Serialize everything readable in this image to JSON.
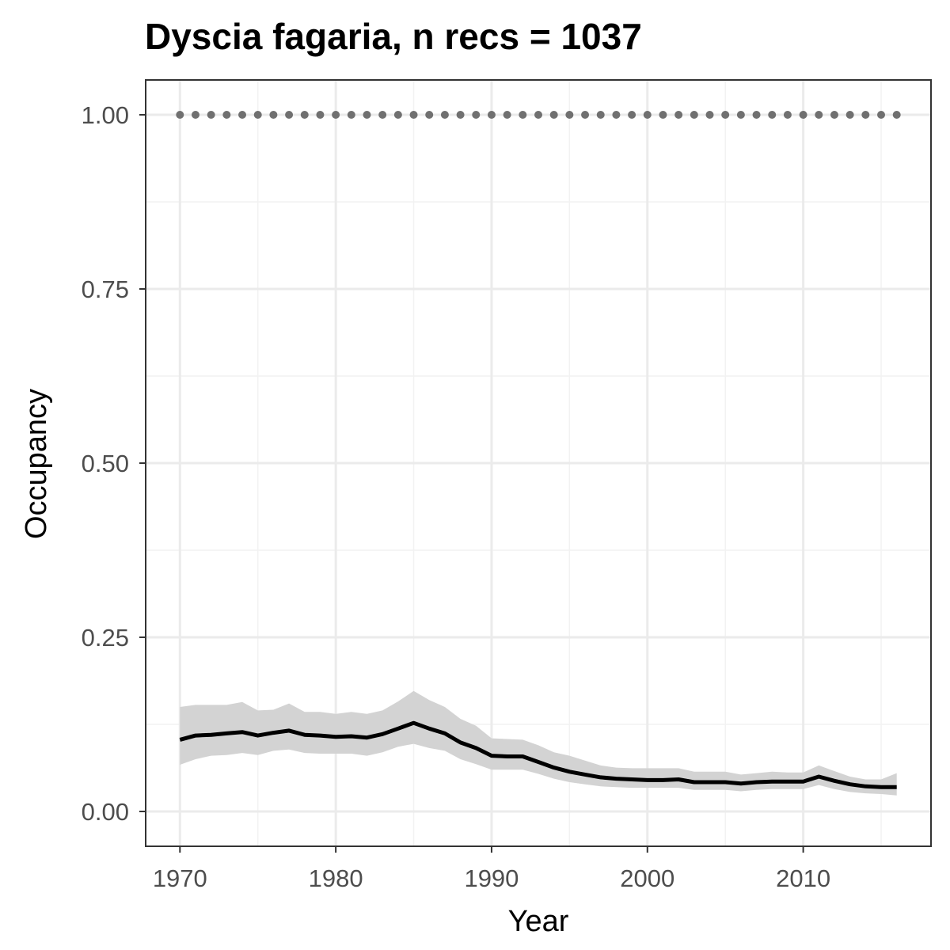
{
  "chart_data": {
    "type": "line",
    "title": "Dyscia fagaria, n recs = 1037",
    "xlabel": "Year",
    "ylabel": "Occupancy",
    "xlim": [
      1967.8,
      2018.2
    ],
    "ylim": [
      -0.05,
      1.05
    ],
    "x_ticks": [
      1970,
      1980,
      1990,
      2000,
      2010
    ],
    "x_tick_labels": [
      "1970",
      "1980",
      "1990",
      "2000",
      "2010"
    ],
    "y_ticks": [
      0,
      0.25,
      0.5,
      0.75,
      1.0
    ],
    "y_tick_labels": [
      "0.00",
      "0.25",
      "0.50",
      "0.75",
      "1.00"
    ],
    "grid": true,
    "series": [
      {
        "role": "mean",
        "style": "solid",
        "color": "#000000",
        "x": [
          1970,
          1971,
          1972,
          1973,
          1974,
          1975,
          1976,
          1977,
          1978,
          1979,
          1980,
          1981,
          1982,
          1983,
          1984,
          1985,
          1986,
          1987,
          1988,
          1989,
          1990,
          1991,
          1992,
          1993,
          1994,
          1995,
          1996,
          1997,
          1998,
          1999,
          2000,
          2001,
          2002,
          2003,
          2004,
          2005,
          2006,
          2007,
          2008,
          2009,
          2010,
          2011,
          2012,
          2013,
          2014,
          2015,
          2016
        ],
        "values": [
          0.103,
          0.109,
          0.11,
          0.112,
          0.114,
          0.109,
          0.113,
          0.116,
          0.11,
          0.109,
          0.107,
          0.108,
          0.106,
          0.111,
          0.119,
          0.127,
          0.119,
          0.112,
          0.099,
          0.091,
          0.08,
          0.079,
          0.079,
          0.071,
          0.063,
          0.057,
          0.053,
          0.049,
          0.047,
          0.046,
          0.045,
          0.045,
          0.046,
          0.042,
          0.042,
          0.042,
          0.04,
          0.042,
          0.043,
          0.043,
          0.043,
          0.05,
          0.044,
          0.039,
          0.036,
          0.035,
          0.035
        ]
      },
      {
        "role": "ci-upper",
        "color": "#d3d3d3",
        "x": [
          1970,
          1971,
          1972,
          1973,
          1974,
          1975,
          1976,
          1977,
          1978,
          1979,
          1980,
          1981,
          1982,
          1983,
          1984,
          1985,
          1986,
          1987,
          1988,
          1989,
          1990,
          1991,
          1992,
          1993,
          1994,
          1995,
          1996,
          1997,
          1998,
          1999,
          2000,
          2001,
          2002,
          2003,
          2004,
          2005,
          2006,
          2007,
          2008,
          2009,
          2010,
          2011,
          2012,
          2013,
          2014,
          2015,
          2016
        ],
        "values": [
          0.15,
          0.153,
          0.153,
          0.153,
          0.157,
          0.145,
          0.146,
          0.155,
          0.143,
          0.143,
          0.14,
          0.143,
          0.14,
          0.145,
          0.158,
          0.173,
          0.16,
          0.15,
          0.133,
          0.123,
          0.105,
          0.104,
          0.103,
          0.095,
          0.085,
          0.08,
          0.073,
          0.066,
          0.063,
          0.062,
          0.062,
          0.062,
          0.062,
          0.057,
          0.057,
          0.057,
          0.053,
          0.055,
          0.057,
          0.056,
          0.056,
          0.066,
          0.058,
          0.05,
          0.046,
          0.046,
          0.055
        ]
      },
      {
        "role": "ci-lower",
        "color": "#d3d3d3",
        "x": [
          1970,
          1971,
          1972,
          1973,
          1974,
          1975,
          1976,
          1977,
          1978,
          1979,
          1980,
          1981,
          1982,
          1983,
          1984,
          1985,
          1986,
          1987,
          1988,
          1989,
          1990,
          1991,
          1992,
          1993,
          1994,
          1995,
          1996,
          1997,
          1998,
          1999,
          2000,
          2001,
          2002,
          2003,
          2004,
          2005,
          2006,
          2007,
          2008,
          2009,
          2010,
          2011,
          2012,
          2013,
          2014,
          2015,
          2016
        ],
        "values": [
          0.067,
          0.075,
          0.08,
          0.081,
          0.084,
          0.081,
          0.087,
          0.089,
          0.084,
          0.083,
          0.083,
          0.083,
          0.08,
          0.085,
          0.093,
          0.097,
          0.091,
          0.087,
          0.075,
          0.068,
          0.06,
          0.06,
          0.06,
          0.054,
          0.047,
          0.042,
          0.039,
          0.036,
          0.035,
          0.034,
          0.034,
          0.034,
          0.034,
          0.031,
          0.031,
          0.031,
          0.029,
          0.031,
          0.032,
          0.032,
          0.032,
          0.038,
          0.032,
          0.028,
          0.026,
          0.025,
          0.023
        ]
      },
      {
        "role": "reference",
        "style": "dotted",
        "color": "#707070",
        "x": [
          1970,
          1971,
          1972,
          1973,
          1974,
          1975,
          1976,
          1977,
          1978,
          1979,
          1980,
          1981,
          1982,
          1983,
          1984,
          1985,
          1986,
          1987,
          1988,
          1989,
          1990,
          1991,
          1992,
          1993,
          1994,
          1995,
          1996,
          1997,
          1998,
          1999,
          2000,
          2001,
          2002,
          2003,
          2004,
          2005,
          2006,
          2007,
          2008,
          2009,
          2010,
          2011,
          2012,
          2013,
          2014,
          2015,
          2016
        ],
        "values": [
          1,
          1,
          1,
          1,
          1,
          1,
          1,
          1,
          1,
          1,
          1,
          1,
          1,
          1,
          1,
          1,
          1,
          1,
          1,
          1,
          1,
          1,
          1,
          1,
          1,
          1,
          1,
          1,
          1,
          1,
          1,
          1,
          1,
          1,
          1,
          1,
          1,
          1,
          1,
          1,
          1,
          1,
          1,
          1,
          1,
          1,
          1
        ]
      }
    ]
  }
}
